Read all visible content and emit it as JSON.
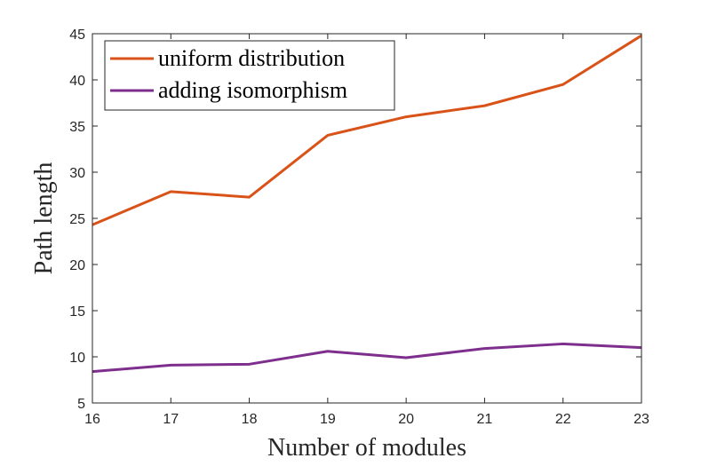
{
  "chart_data": {
    "type": "line",
    "title": "",
    "xlabel": "Number of modules",
    "ylabel": "Path length",
    "x": [
      16,
      17,
      18,
      19,
      20,
      21,
      22,
      23
    ],
    "xlim": [
      16,
      23
    ],
    "ylim": [
      5,
      45
    ],
    "xticks": [
      16,
      17,
      18,
      19,
      20,
      21,
      22,
      23
    ],
    "yticks": [
      5,
      10,
      15,
      20,
      25,
      30,
      35,
      40,
      45
    ],
    "grid": false,
    "legend_position": "top-left",
    "series": [
      {
        "name": "uniform distribution",
        "color": "#d95319",
        "values": [
          24.3,
          27.9,
          27.3,
          34.0,
          36.0,
          37.2,
          39.5,
          44.8
        ]
      },
      {
        "name": "adding isomorphism",
        "color": "#7e2f8e",
        "values": [
          8.4,
          9.1,
          9.2,
          10.6,
          9.9,
          10.9,
          11.4,
          11.0
        ]
      }
    ]
  }
}
